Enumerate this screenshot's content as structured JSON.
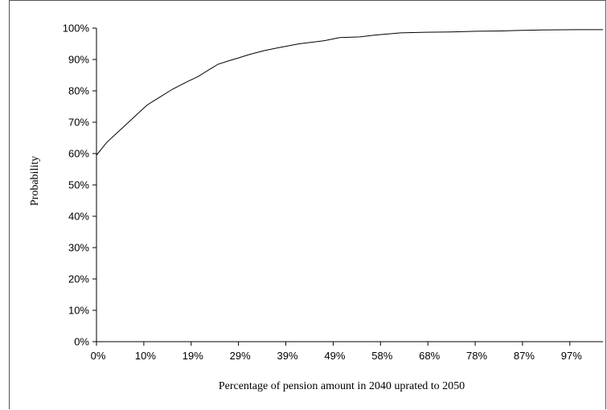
{
  "chart_data": {
    "type": "line",
    "title": "",
    "xlabel": "Percentage of pension amount in 2040 uprated to 2050",
    "ylabel": "Probability",
    "x_tick_labels": [
      "0%",
      "10%",
      "19%",
      "29%",
      "39%",
      "49%",
      "58%",
      "68%",
      "78%",
      "87%",
      "97%"
    ],
    "y_tick_labels": [
      "0%",
      "10%",
      "20%",
      "30%",
      "40%",
      "50%",
      "60%",
      "70%",
      "80%",
      "90%",
      "100%"
    ],
    "xlim": [
      0,
      100
    ],
    "ylim": [
      0,
      100
    ],
    "grid": false,
    "legend": "none",
    "line_color": "#000000",
    "series": [
      {
        "x": [
          0,
          1,
          2,
          4,
          6,
          8,
          10,
          12,
          15,
          18,
          20,
          22,
          24,
          26,
          28,
          30,
          33,
          36,
          40,
          45,
          48,
          52,
          55,
          58,
          60,
          65,
          70,
          75,
          80,
          84,
          88,
          95,
          100
        ],
        "y": [
          59.5,
          61.5,
          63.5,
          66.5,
          69.5,
          72.5,
          75.5,
          77.5,
          80.5,
          83,
          84.5,
          86.5,
          88.5,
          89.5,
          90.5,
          91.5,
          92.8,
          93.8,
          95,
          96,
          97,
          97.2,
          97.8,
          98.2,
          98.5,
          98.7,
          98.8,
          99,
          99.1,
          99.3,
          99.4,
          99.5,
          99.5
        ]
      }
    ]
  }
}
